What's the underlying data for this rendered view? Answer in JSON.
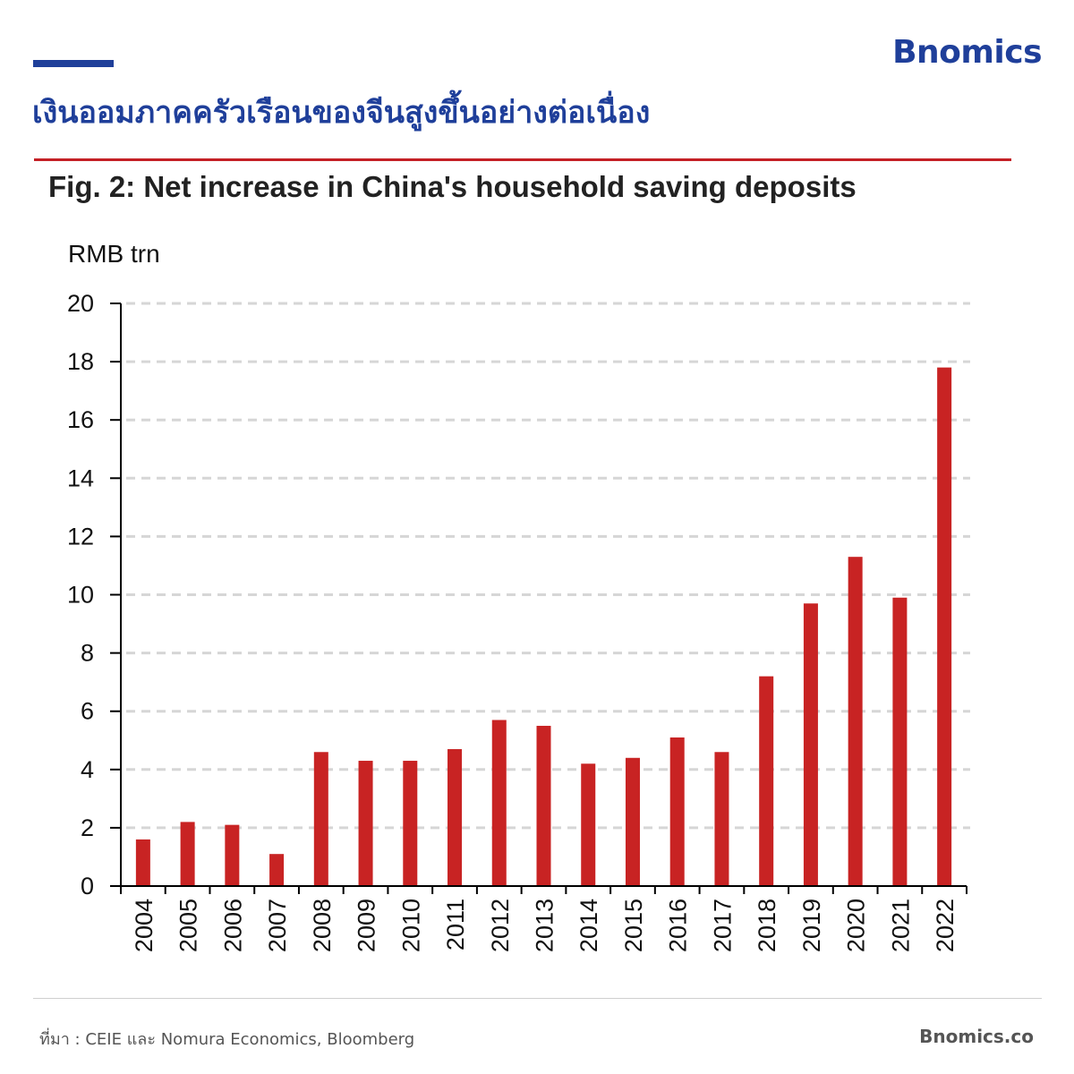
{
  "brand": "Bnomics",
  "headline": "เงินออมภาคครัวเรือนของจีนสูงขึ้นอย่างต่อเนื่อง",
  "colors": {
    "brand_blue": "#1f3f9a",
    "rule_red": "#c42026",
    "bar_red": "#c82323"
  },
  "chart_data": {
    "type": "bar",
    "title": "Fig. 2: Net increase in China's household saving deposits",
    "ylabel": "RMB trn",
    "xlabel": "",
    "ylim": [
      0,
      20
    ],
    "yticks": [
      0,
      2,
      4,
      6,
      8,
      10,
      12,
      14,
      16,
      18,
      20
    ],
    "grid": "horizontal dashed",
    "categories": [
      "2004",
      "2005",
      "2006",
      "2007",
      "2008",
      "2009",
      "2010",
      "2011",
      "2012",
      "2013",
      "2014",
      "2015",
      "2016",
      "2017",
      "2018",
      "2019",
      "2020",
      "2021",
      "2022"
    ],
    "values": [
      1.6,
      2.2,
      2.1,
      1.1,
      4.6,
      4.3,
      4.3,
      4.7,
      5.7,
      5.5,
      4.2,
      4.4,
      5.1,
      4.6,
      7.2,
      9.7,
      11.3,
      9.9,
      17.8
    ]
  },
  "footer": {
    "source": "ที่มา : CEIE และ Nomura Economics, Bloomberg",
    "site": "Bnomics.co"
  }
}
